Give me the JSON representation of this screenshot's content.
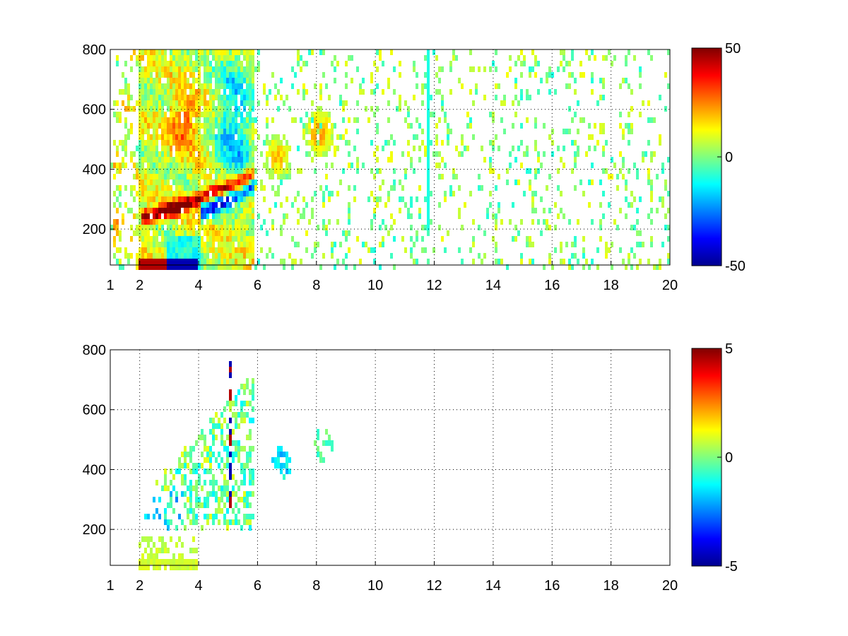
{
  "chart_data": [
    {
      "type": "heatmap",
      "title": "",
      "xlabel": "",
      "ylabel": "",
      "xlim": [
        1,
        20
      ],
      "ylim": [
        80,
        800
      ],
      "x_ticks": [
        1,
        2,
        4,
        6,
        8,
        10,
        12,
        14,
        16,
        18,
        20
      ],
      "y_ticks": [
        200,
        400,
        600,
        800
      ],
      "grid": true,
      "colormap": "jet",
      "clim": [
        -50,
        50
      ],
      "colorbar_ticks": [
        -50,
        0,
        50
      ],
      "ridge": {
        "x": [
          2.3,
          3,
          3.5,
          4,
          4.5,
          5,
          5.5,
          5.8
        ],
        "y": [
          240,
          265,
          280,
          300,
          320,
          340,
          360,
          380
        ],
        "value": 45
      },
      "trough": {
        "x": [
          4.2,
          4.6,
          5,
          5.4,
          5.8
        ],
        "y": [
          260,
          280,
          300,
          320,
          345
        ],
        "value": -45
      },
      "blobs": [
        {
          "x": 6.7,
          "y": 440,
          "value": 18
        },
        {
          "x": 8.1,
          "y": 520,
          "value": 22
        },
        {
          "x": 3.5,
          "y": 560,
          "value": 22
        }
      ],
      "low_band": {
        "x": [
          2,
          4
        ],
        "y": [
          80,
          100
        ],
        "values": [
          45,
          -45
        ]
      },
      "noise_columns_x": [
        11.8
      ]
    },
    {
      "type": "heatmap",
      "title": "",
      "xlabel": "",
      "ylabel": "",
      "xlim": [
        1,
        20
      ],
      "ylim": [
        80,
        800
      ],
      "x_ticks": [
        1,
        2,
        4,
        6,
        8,
        10,
        12,
        14,
        16,
        18,
        20
      ],
      "y_ticks": [
        200,
        400,
        600,
        800
      ],
      "grid": true,
      "colormap": "jet",
      "clim": [
        -5,
        5
      ],
      "colorbar_ticks": [
        -5,
        0,
        5
      ],
      "region_x": [
        2,
        5.9
      ],
      "spikes_x": [
        5.05
      ],
      "blobs": [
        {
          "x": 6.8,
          "y": 420,
          "value": -1.5
        },
        {
          "x": 8.2,
          "y": 480,
          "value": -0.5
        }
      ],
      "low_band": {
        "x": [
          2,
          4
        ],
        "y": [
          80,
          100
        ],
        "values": [
          0.8
        ]
      }
    }
  ]
}
